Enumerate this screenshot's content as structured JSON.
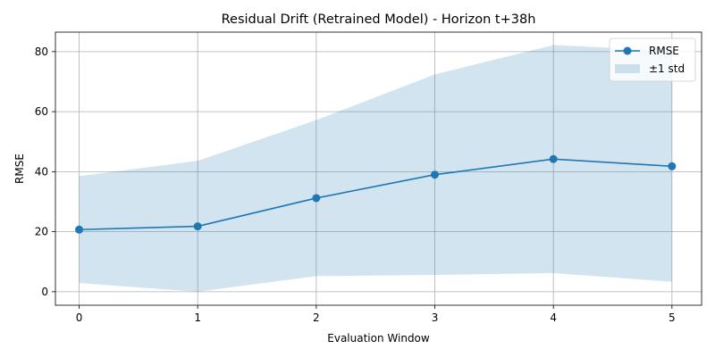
{
  "chart_data": {
    "type": "line",
    "title": "Residual Drift (Retrained Model) - Horizon t+38h",
    "xlabel": "Evaluation Window",
    "ylabel": "RMSE",
    "x": [
      0,
      1,
      2,
      3,
      4,
      5
    ],
    "xticks": [
      "0",
      "1",
      "2",
      "3",
      "4",
      "5"
    ],
    "xlim": [
      -0.2,
      5.25
    ],
    "ylim": [
      -4.5,
      86.5
    ],
    "yticks": [
      0,
      20,
      40,
      60,
      80
    ],
    "ytick_labels": [
      "0",
      "20",
      "40",
      "60",
      "80"
    ],
    "grid": true,
    "legend_position": "top-right",
    "series": [
      {
        "name": "RMSE",
        "kind": "line-marker",
        "color": "#1f77b4",
        "values": [
          20.7,
          21.8,
          31.2,
          39.0,
          44.2,
          41.8
        ]
      },
      {
        "name": "±1 std",
        "kind": "band",
        "color": "#1f77b4",
        "opacity": 0.2,
        "lower": [
          2.9,
          0.0,
          5.2,
          5.6,
          6.2,
          3.3
        ],
        "upper": [
          38.5,
          43.6,
          57.2,
          72.4,
          82.2,
          80.3
        ]
      }
    ]
  }
}
